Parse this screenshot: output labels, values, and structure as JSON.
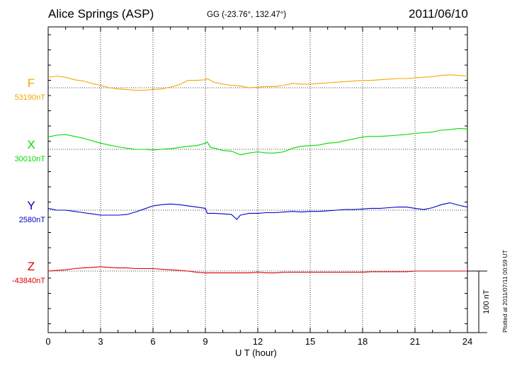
{
  "header": {
    "station": "Alice Springs (ASP)",
    "coords": "GG (-23.76°, 132.47°)",
    "date": "2011/06/10"
  },
  "footer": {
    "plotted": "Plotted at 2011/07/11 00:59 UT"
  },
  "components": [
    {
      "name": "F",
      "baseline": "53190nT",
      "color": "#f5a800"
    },
    {
      "name": "X",
      "baseline": "30010nT",
      "color": "#00dd00"
    },
    {
      "name": "Y",
      "baseline": "2580nT",
      "color": "#0000cc"
    },
    {
      "name": "Z",
      "baseline": "-43840nT",
      "color": "#dd0000"
    }
  ],
  "scale_label": "100 nT",
  "chart_data": {
    "type": "line",
    "title": "Alice Springs (ASP)",
    "xlabel": "U T (hour)",
    "ylabel": "",
    "xlim": [
      0,
      24
    ],
    "xticks": [
      0,
      3,
      6,
      9,
      12,
      15,
      18,
      21,
      24
    ],
    "scale_bar_nT": 100,
    "units": "nT (offset from baseline)",
    "grid": true,
    "series": [
      {
        "name": "F",
        "baseline": "53190nT",
        "color": "#f5a800",
        "x": [
          0,
          0.5,
          1,
          1.5,
          2,
          2.5,
          3,
          3.5,
          4,
          4.5,
          5,
          5.5,
          6,
          6.5,
          7,
          7.5,
          8,
          8.5,
          9,
          9.1,
          9.5,
          10,
          10.5,
          11,
          11.5,
          12,
          12.5,
          13,
          13.5,
          14,
          14.5,
          15,
          15.5,
          16,
          16.5,
          17,
          17.5,
          18,
          18.5,
          19,
          19.5,
          20,
          20.5,
          21,
          21.5,
          22,
          22.5,
          23,
          23.5,
          24
        ],
        "y": [
          17,
          19,
          17,
          13,
          11,
          7,
          4,
          0,
          -2,
          -3,
          -4,
          -4,
          -3,
          -2,
          1,
          5,
          12,
          12,
          13,
          15,
          9,
          6,
          4,
          3,
          0,
          1,
          2,
          2,
          4,
          7,
          6,
          6,
          7,
          8,
          9,
          10,
          11,
          12,
          12,
          13,
          14,
          15,
          15,
          16,
          17,
          18,
          20,
          21,
          20,
          19
        ]
      },
      {
        "name": "X",
        "baseline": "30010nT",
        "color": "#00dd00",
        "x": [
          0,
          0.5,
          1,
          1.5,
          2,
          2.5,
          3,
          3.5,
          4,
          4.5,
          5,
          5.5,
          6,
          6.5,
          7,
          7.5,
          8,
          8.5,
          9,
          9.1,
          9.3,
          9.5,
          10,
          10.5,
          11,
          11.5,
          12,
          12.5,
          13,
          13.5,
          14,
          14.5,
          15,
          15.5,
          16,
          16.5,
          17,
          17.5,
          18,
          18.5,
          19,
          19.5,
          20,
          20.5,
          21,
          21.5,
          22,
          22.5,
          23,
          23.5,
          24
        ],
        "y": [
          20,
          23,
          24,
          21,
          18,
          14,
          10,
          7,
          4,
          2,
          0,
          0,
          -1,
          0,
          1,
          3,
          5,
          6,
          10,
          12,
          3,
          2,
          -2,
          -3,
          -9,
          -6,
          -4,
          -6,
          -6,
          -4,
          2,
          5,
          6,
          7,
          10,
          11,
          14,
          17,
          20,
          21,
          21,
          22,
          23,
          24,
          26,
          27,
          28,
          31,
          32,
          34,
          33
        ]
      },
      {
        "name": "Y",
        "baseline": "2580nT",
        "color": "#0000cc",
        "x": [
          0,
          0.5,
          1,
          1.5,
          2,
          2.5,
          3,
          3.5,
          4,
          4.5,
          5,
          5.5,
          6,
          6.5,
          7,
          7.5,
          8,
          8.5,
          9,
          9.1,
          9.5,
          10,
          10.5,
          10.8,
          11,
          11.5,
          12,
          12.5,
          13,
          13.5,
          14,
          14.5,
          15,
          15.5,
          16,
          16.5,
          17,
          17.5,
          18,
          18.5,
          19,
          19.5,
          20,
          20.5,
          21,
          21.5,
          22,
          22.5,
          23,
          23.5,
          24
        ],
        "y": [
          3,
          0,
          0,
          -2,
          -4,
          -6,
          -8,
          -8,
          -8,
          -7,
          -3,
          2,
          7,
          9,
          10,
          9,
          7,
          5,
          3,
          -5,
          -5,
          -6,
          -7,
          -15,
          -8,
          -5,
          -5,
          -4,
          -4,
          -3,
          -2,
          -3,
          -2,
          -2,
          -1,
          0,
          1,
          1,
          2,
          3,
          3,
          4,
          5,
          5,
          3,
          1,
          4,
          9,
          12,
          8,
          5
        ]
      },
      {
        "name": "Z",
        "baseline": "-43840nT",
        "color": "#dd0000",
        "x": [
          0,
          0.5,
          1,
          1.5,
          2,
          2.5,
          3,
          3.5,
          4,
          4.5,
          5,
          5.5,
          6,
          6.5,
          7,
          7.5,
          8,
          8.5,
          9,
          9.5,
          10,
          10.5,
          11,
          11.5,
          12,
          12.5,
          13,
          13.5,
          14,
          14.5,
          15,
          15.5,
          16,
          16.5,
          17,
          17.5,
          18,
          18.5,
          19,
          19.5,
          20,
          20.5,
          21,
          21.5,
          22,
          22.5,
          23,
          23.5,
          24
        ],
        "y": [
          0,
          1,
          2,
          4,
          5,
          6,
          7,
          6,
          5,
          5,
          4,
          4,
          4,
          3,
          2,
          1,
          0,
          -2,
          -3,
          -3,
          -3,
          -3,
          -3,
          -3,
          -2,
          -3,
          -3,
          -2,
          -2,
          -2,
          -2,
          -2,
          -2,
          -2,
          -2,
          -2,
          -2,
          -1,
          -1,
          -1,
          -1,
          -1,
          0,
          0,
          0,
          0,
          0,
          0,
          0
        ]
      }
    ]
  }
}
